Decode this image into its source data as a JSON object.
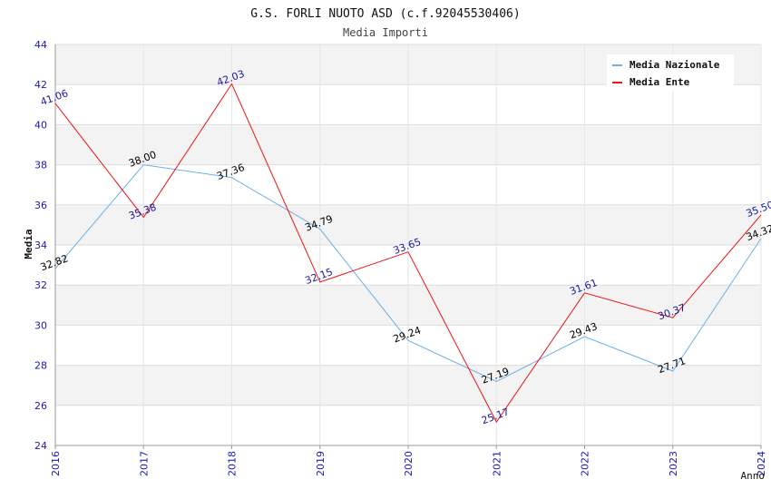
{
  "chart_data": {
    "type": "line",
    "title": "G.S. FORLI NUOTO ASD (c.f.92045530406)",
    "subtitle": "Media Importi",
    "xlabel": "Anno",
    "ylabel": "Media",
    "x": [
      "2016",
      "2017",
      "2018",
      "2019",
      "2020",
      "2021",
      "2022",
      "2023",
      "2024"
    ],
    "ylim": [
      24,
      44
    ],
    "yticks": [
      "24",
      "26",
      "28",
      "30",
      "32",
      "34",
      "36",
      "38",
      "40",
      "42",
      "44"
    ],
    "grid": true,
    "legend_position": "top-right",
    "series": [
      {
        "name": "Media Nazionale",
        "color": "#6aaee6",
        "label_color": "#000000",
        "values": [
          32.82,
          38.0,
          37.36,
          34.79,
          29.24,
          27.19,
          29.43,
          27.71,
          34.32
        ],
        "labels": [
          "32.82",
          "38.00",
          "37.36",
          "34.79",
          "29.24",
          "27.19",
          "29.43",
          "27.71",
          "34.32"
        ]
      },
      {
        "name": "Media Ente",
        "color": "#ee1111",
        "label_color": "#1a1aa0",
        "values": [
          41.06,
          35.38,
          42.03,
          32.15,
          33.65,
          25.17,
          31.61,
          30.37,
          35.5
        ],
        "labels": [
          "41.06",
          "35.38",
          "42.03",
          "32.15",
          "33.65",
          "25.17",
          "31.61",
          "30.37",
          "35.50"
        ]
      }
    ]
  }
}
